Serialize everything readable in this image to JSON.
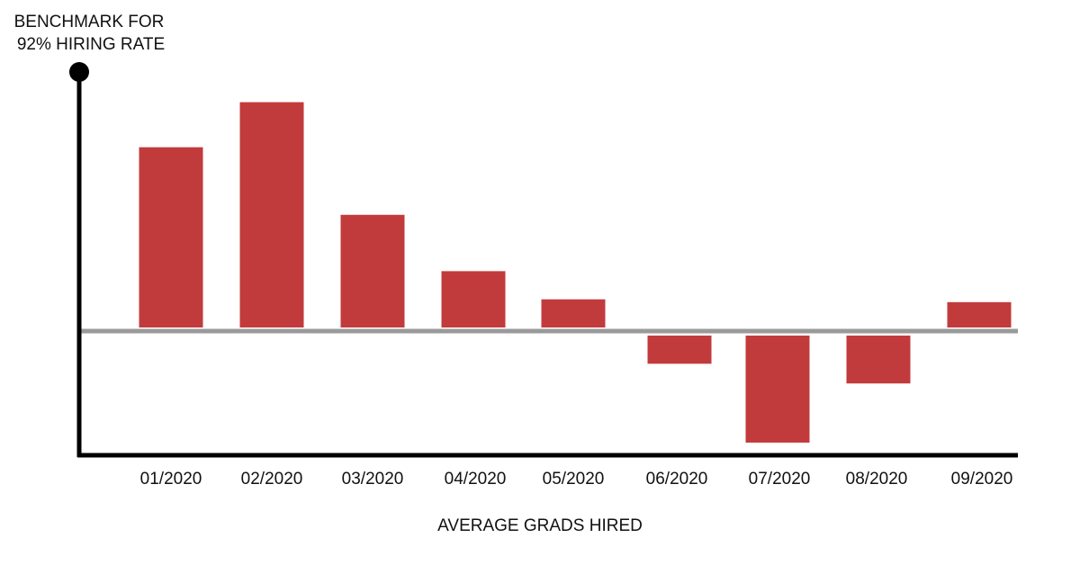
{
  "chart_data": {
    "type": "bar",
    "title_lines": [
      "BENCHMARK FOR",
      "92% HIRING RATE"
    ],
    "xlabel": "AVERAGE GRADS HIRED",
    "ylabel": "",
    "categories": [
      "01/2020",
      "02/2020",
      "03/2020",
      "04/2020",
      "05/2020",
      "06/2020",
      "07/2020",
      "08/2020",
      "09/2020"
    ],
    "values": [
      6.4,
      8.0,
      4.0,
      2.0,
      1.0,
      -1.0,
      -3.8,
      -1.7,
      0.9
    ],
    "ylim": [
      -4.2,
      9.2
    ],
    "baseline": 0,
    "grid": false,
    "colors": {
      "bar": "#c23b3c",
      "baseline": "#9a9a9a",
      "axis": "#000000",
      "text": "#111111"
    }
  }
}
